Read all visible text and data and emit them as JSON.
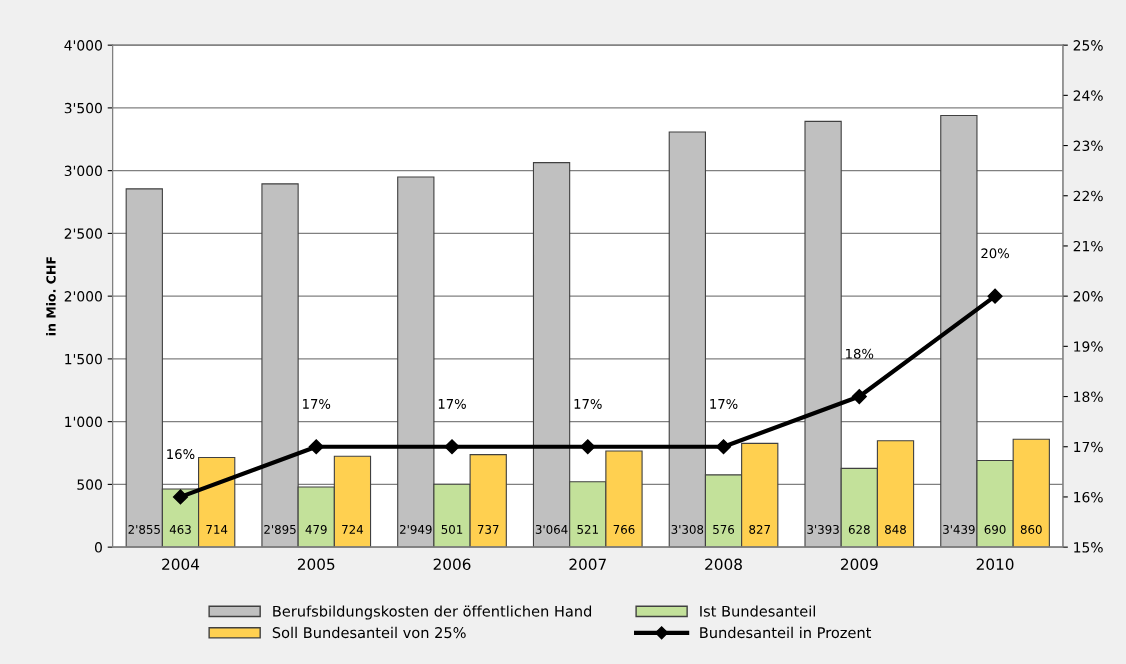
{
  "chart_data": {
    "type": "bar",
    "ylabel": "in Mio. CHF",
    "categories": [
      "2004",
      "2005",
      "2006",
      "2007",
      "2008",
      "2009",
      "2010"
    ],
    "series": [
      {
        "name": "Berufsbildungskosten der öffentlichen Hand",
        "color": "#c0c0c0",
        "values": [
          2855,
          2895,
          2949,
          3064,
          3308,
          3393,
          3439
        ],
        "value_labels": [
          "2'855",
          "2'895",
          "2'949",
          "3'064",
          "3'308",
          "3'393",
          "3'439"
        ]
      },
      {
        "name": "Ist Bundesanteil",
        "color": "#c3e19a",
        "values": [
          463,
          479,
          501,
          521,
          576,
          628,
          690
        ],
        "value_labels": [
          "463",
          "479",
          "501",
          "521",
          "576",
          "628",
          "690"
        ]
      },
      {
        "name": "Soll Bundesanteil von 25%",
        "color": "#ffd050",
        "values": [
          714,
          724,
          737,
          766,
          827,
          848,
          860
        ],
        "value_labels": [
          "714",
          "724",
          "737",
          "766",
          "827",
          "848",
          "860"
        ]
      },
      {
        "name": "Bundesanteil in Prozent",
        "type": "line",
        "axis": "y2",
        "color": "#000000",
        "marker": "diamond",
        "line_style": "solid",
        "values": [
          16,
          17,
          17,
          17,
          17,
          18,
          20
        ],
        "value_labels": [
          "16%",
          "17%",
          "17%",
          "17%",
          "17%",
          "18%",
          "20%"
        ]
      }
    ],
    "ylim": [
      0,
      4000
    ],
    "yticks": [
      0,
      500,
      {
        "value": 1000,
        "label": "1'000"
      },
      {
        "value": 1500,
        "label": "1'500"
      },
      {
        "value": 2000,
        "label": "2'000"
      },
      {
        "value": 2500,
        "label": "2'500"
      },
      {
        "value": 3000,
        "label": "3'000"
      },
      {
        "value": 3500,
        "label": "3'500"
      },
      {
        "value": 4000,
        "label": "4'000"
      }
    ],
    "y2lim": [
      15,
      25
    ],
    "y2ticks": [
      {
        "value": 15,
        "label": "15%"
      },
      {
        "value": 16,
        "label": "16%"
      },
      {
        "value": 17,
        "label": "17%"
      },
      {
        "value": 18,
        "label": "18%"
      },
      {
        "value": 19,
        "label": "19%"
      },
      {
        "value": 20,
        "label": "20%"
      },
      {
        "value": 21,
        "label": "21%"
      },
      {
        "value": 22,
        "label": "22%"
      },
      {
        "value": 23,
        "label": "23%"
      },
      {
        "value": 24,
        "label": "24%"
      },
      {
        "value": 25,
        "label": "25%"
      }
    ],
    "grid": "y",
    "legend": "bottom"
  }
}
